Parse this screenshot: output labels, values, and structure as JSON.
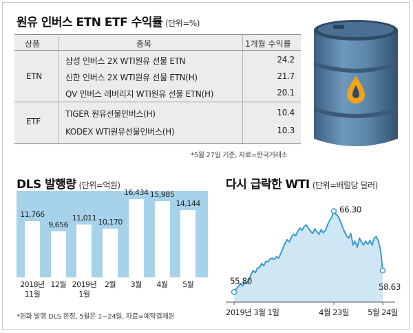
{
  "section1": {
    "title": "원유 인버스 ETN ETF 수익률",
    "unit": "(단위=%)",
    "headers": {
      "category": "상품",
      "name": "종목",
      "return": "1개월 수익률"
    },
    "groups": [
      {
        "category": "ETN",
        "rows": [
          {
            "name": "삼성 인버스 2X WTI원유 선물 ETN",
            "value": "24.2"
          },
          {
            "name": "신한 인버스 2X WTI원유 선물 ETN(H)",
            "value": "21.7"
          },
          {
            "name": "QV 인버스 레버리지 WTI원유 선물 ETN(H)",
            "value": "20.1"
          }
        ]
      },
      {
        "category": "ETF",
        "rows": [
          {
            "name": "TIGER 원유선물인버스(H)",
            "value": "10.4"
          },
          {
            "name": "KODEX WTI원유선물인버스(H)",
            "value": "10.3"
          }
        ]
      }
    ],
    "note": "*5월 27일 기준, 자료=한국거래소"
  },
  "section2": {
    "title": "DLS 발행량",
    "unit": "(단위=억원)",
    "note": "*원화 발행 DLS 한정, 5월은 1~24일, 자료=예탁결제원",
    "chart_data": {
      "type": "bar",
      "categories": [
        "2018년 11월",
        "12월",
        "2019년 1월",
        "2월",
        "3월",
        "4월",
        "5월"
      ],
      "values": [
        11766,
        9656,
        11011,
        10170,
        16434,
        15985,
        14144
      ],
      "value_labels": [
        "11,766",
        "9,656",
        "11,011",
        "10,170",
        "16,434",
        "15,985",
        "14,144"
      ],
      "x_tick_lines": [
        [
          "2018년",
          "11월"
        ],
        [
          "12월",
          ""
        ],
        [
          "2019년",
          "1월"
        ],
        [
          "2월",
          ""
        ],
        [
          "3월",
          ""
        ],
        [
          "4월",
          ""
        ],
        [
          "5월",
          ""
        ]
      ],
      "ylabel": "",
      "bar_color": "#ffffff",
      "background": "#a6d3ea"
    }
  },
  "section3": {
    "title": "다시 급락한 WTI",
    "unit": "(단위=배럴당 달러)",
    "chart_data": {
      "type": "line",
      "xlabels": [
        "2019년 3월 1일",
        "4월 23일",
        "5월 24일"
      ],
      "annotations": [
        {
          "label": "55.80",
          "value": 55.8
        },
        {
          "label": "66.30",
          "value": 66.3
        },
        {
          "label": "58.63",
          "value": 58.63
        }
      ],
      "ylim": [
        54.5,
        67.5
      ],
      "values": [
        55.8,
        56.2,
        56.5,
        56.9,
        56.6,
        57.1,
        56.9,
        57.3,
        58.1,
        58.6,
        58.3,
        58.9,
        59.0,
        59.5,
        59.2,
        59.8,
        59.7,
        60.1,
        60.2,
        60.0,
        60.4,
        60.2,
        60.8,
        61.5,
        62.1,
        62.6,
        62.3,
        62.9,
        63.3,
        63.1,
        63.7,
        64.1,
        63.8,
        64.3,
        64.5,
        64.1,
        63.7,
        63.4,
        64.0,
        63.6,
        63.3,
        63.9,
        63.5,
        63.8,
        64.5,
        65.1,
        65.5,
        66.3,
        65.9,
        65.6,
        65.0,
        64.3,
        63.6,
        63.1,
        62.8,
        63.4,
        61.9,
        62.4,
        61.6,
        62.8,
        62.3,
        61.9,
        62.4,
        62.0,
        62.5,
        61.9,
        62.8,
        63.0,
        62.4,
        61.2,
        58.6
      ],
      "line_color": "#3a9ad0",
      "area_color": "#cfe7f4"
    }
  },
  "barrel": {
    "icon": "oil-barrel-icon",
    "body_color": "#5a84a8",
    "drop_color": "#f2a21c"
  }
}
